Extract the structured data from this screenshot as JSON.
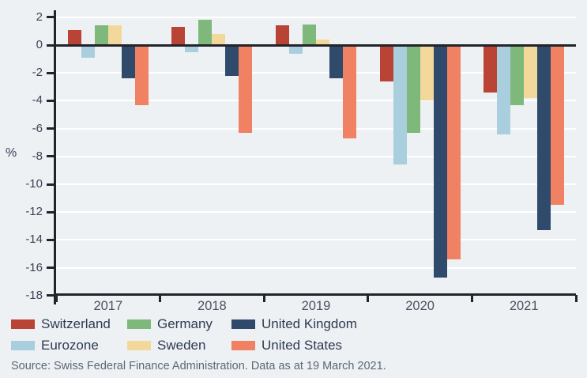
{
  "chart_data": {
    "type": "bar",
    "title": "",
    "xlabel": "",
    "ylabel": "%",
    "categories": [
      "2017",
      "2018",
      "2019",
      "2020",
      "2021"
    ],
    "series": [
      {
        "name": "Switzerland",
        "color": "#b94335",
        "values": [
          1.1,
          1.3,
          1.4,
          -2.6,
          -3.4
        ]
      },
      {
        "name": "Eurozone",
        "color": "#a9cedd",
        "values": [
          -0.9,
          -0.5,
          -0.6,
          -8.6,
          -6.4
        ]
      },
      {
        "name": "Germany",
        "color": "#7eb87a",
        "values": [
          1.4,
          1.8,
          1.5,
          -6.3,
          -4.3
        ]
      },
      {
        "name": "Sweden",
        "color": "#f2d89b",
        "values": [
          1.4,
          0.8,
          0.4,
          -4.0,
          -3.8
        ]
      },
      {
        "name": "United Kingdom",
        "color": "#2f4a6b",
        "values": [
          -2.4,
          -2.2,
          -2.4,
          -16.7,
          -13.3
        ]
      },
      {
        "name": "United States",
        "color": "#f08163",
        "values": [
          -4.3,
          -6.3,
          -6.7,
          -15.4,
          -11.5
        ]
      }
    ],
    "ylim": [
      -18,
      2
    ],
    "ytick_step": 2,
    "grid": true,
    "gridline_color": "#ffffff",
    "axis_color": "#22242a",
    "background_color": "#eef1f4",
    "legend_position": "bottom"
  },
  "source": "Source: Swiss Federal Finance Administration. Data as at 19 March 2021."
}
